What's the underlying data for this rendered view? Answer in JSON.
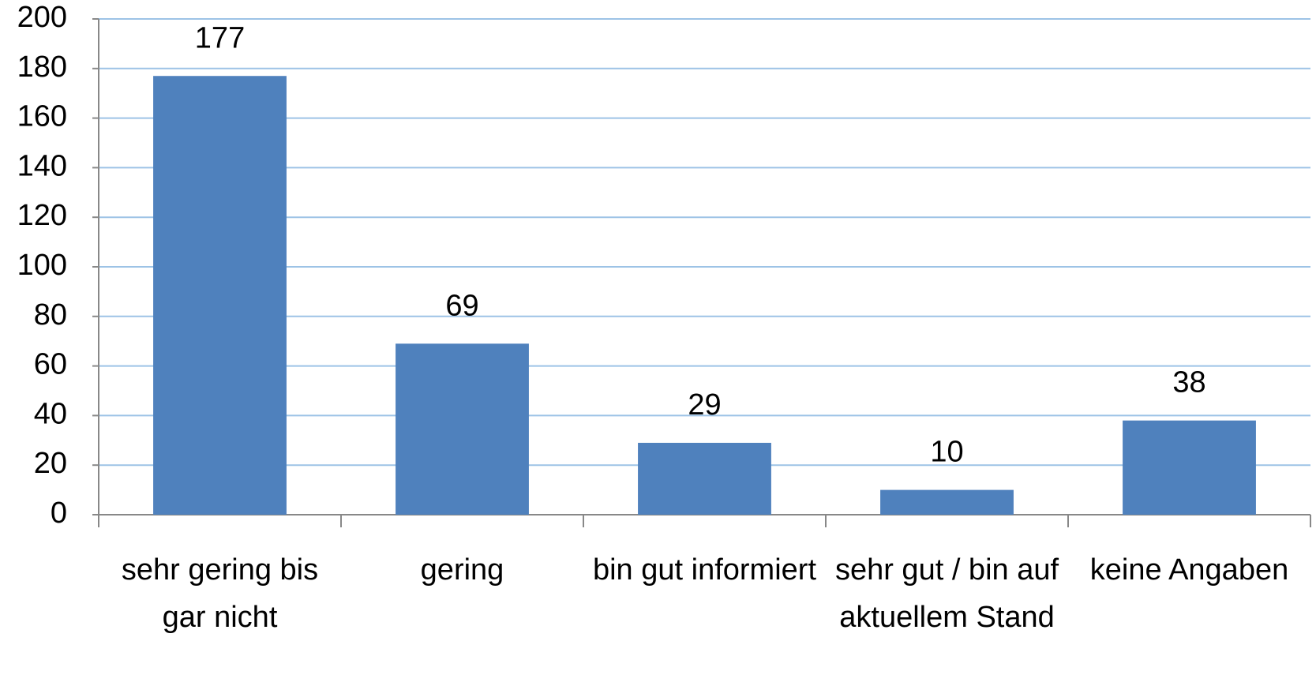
{
  "chart_data": {
    "type": "bar",
    "categories": [
      "sehr gering bis gar nicht",
      "gering",
      "bin gut informiert",
      "sehr gut / bin auf aktuellem Stand",
      "keine Angaben"
    ],
    "values": [
      177,
      69,
      29,
      10,
      38
    ],
    "color": "#4f81bd",
    "ylim": [
      0,
      200
    ],
    "yticks": [
      0,
      20,
      40,
      60,
      80,
      100,
      120,
      140,
      160,
      180,
      200
    ],
    "grid": true
  }
}
